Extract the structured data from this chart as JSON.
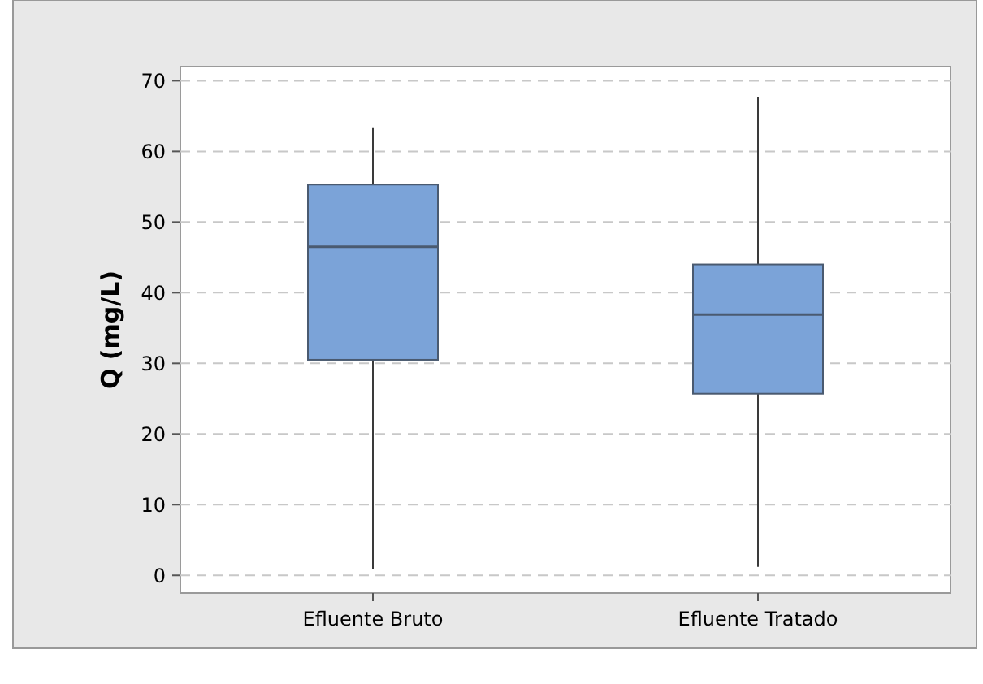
{
  "chart_data": {
    "type": "box",
    "ylabel": "Q (mg/L)",
    "categories": [
      "Efluente Bruto",
      "Efluente Tratado"
    ],
    "color": "#7ba3d8",
    "boxes": [
      {
        "low": 0.9,
        "q1": 30.5,
        "median": 46.5,
        "q3": 55.3,
        "high": 63.4
      },
      {
        "low": 1.2,
        "q1": 25.7,
        "median": 36.9,
        "q3": 44.0,
        "high": 67.7
      }
    ],
    "ylim": [
      -2.5,
      72
    ],
    "yticks": [
      0,
      10,
      20,
      30,
      40,
      50,
      60,
      70
    ],
    "grid": "y",
    "line_style": "dashed"
  }
}
